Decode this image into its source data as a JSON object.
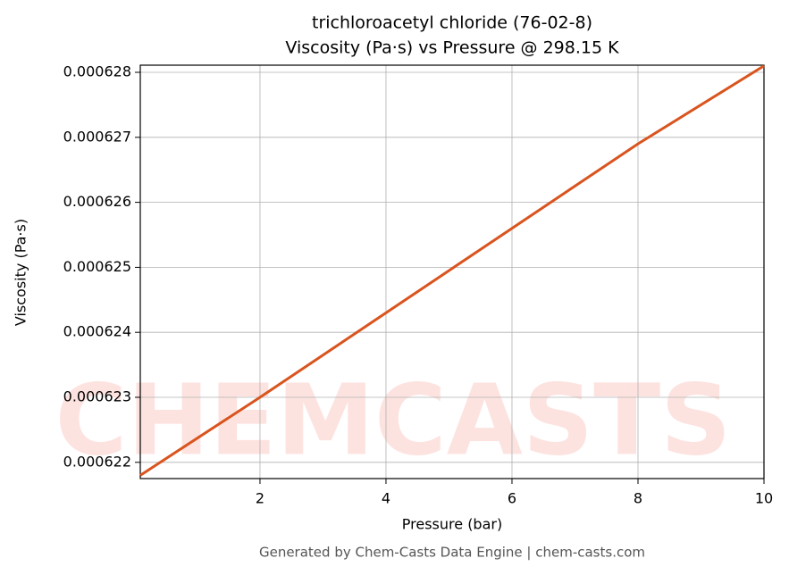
{
  "chart_data": {
    "type": "line",
    "title": "trichloroacetyl chloride (76-02-8)",
    "subtitle": "Viscosity (Pa·s) vs Pressure @ 298.15 K",
    "x_label": "Pressure (bar)",
    "y_label": "Viscosity (Pa·s)",
    "watermark": "CHEMCASTS",
    "footer": "Generated by Chem-Casts Data Engine | chem-casts.com",
    "x": [
      0.1,
      2,
      4,
      6,
      8,
      10
    ],
    "series": [
      {
        "name": "Viscosity",
        "color": "#d9541e",
        "values": [
          0.0006218,
          0.000623,
          0.0006243,
          0.0006256,
          0.0006269,
          0.0006281
        ]
      }
    ],
    "xlim": [
      0.1,
      10
    ],
    "ylim": [
      0.00062175,
      0.00062811
    ],
    "xticks": [
      2,
      4,
      6,
      8,
      10
    ],
    "yticks": [
      0.000622,
      0.000623,
      0.000624,
      0.000625,
      0.000626,
      0.000627,
      0.000628
    ],
    "grid": true
  }
}
